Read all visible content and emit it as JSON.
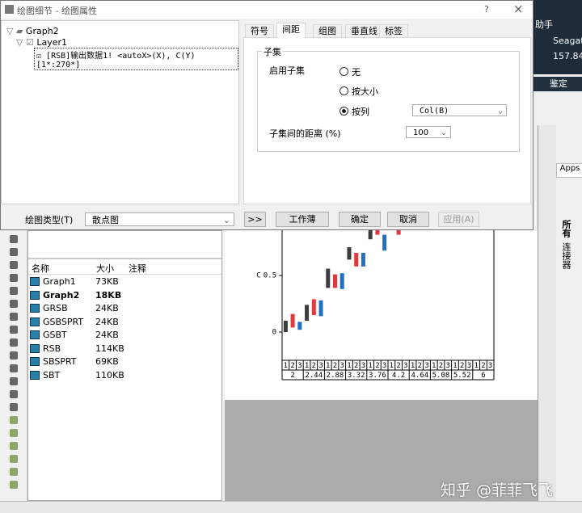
{
  "dialog": {
    "title": "绘图细节 - 绘图属性",
    "help": "?",
    "close": "×",
    "tree": [
      "Graph2",
      "Layer1",
      "[RSB]输出数据1! <autoX>(X), C(Y) [1*:270*]"
    ],
    "tabs": [
      "符号",
      "间距",
      "组图",
      "垂直线",
      "标签"
    ],
    "group_title": "子集",
    "enable_label": "启用子集",
    "options": [
      "无",
      "按大小",
      "按列"
    ],
    "column": "Col(B)",
    "distance_label": "子集间的距离 (%)",
    "distance": "100",
    "plot_type_label": "绘图类型(T)",
    "plot_type": "散点图",
    "buttons": [
      ">>",
      "工作薄",
      "确定",
      "取消",
      "应用(A)"
    ]
  },
  "explorer": {
    "columns": [
      "名称",
      "大小",
      "注释"
    ],
    "rows": [
      [
        "Graph1",
        "73KB"
      ],
      [
        "Graph2",
        "18KB"
      ],
      [
        "GRSB",
        "24KB"
      ],
      [
        "GSBSPRT",
        "24KB"
      ],
      [
        "GSBT",
        "24KB"
      ],
      [
        "RSB",
        "114KB"
      ],
      [
        "SBSPRT",
        "69KB"
      ],
      [
        "SBT",
        "110KB"
      ]
    ]
  },
  "graph": {
    "y_label": "C",
    "ylim": [
      -0.25,
      1
    ],
    "yticks": [
      0,
      0.5
    ],
    "sub_labels": [
      "1",
      "2",
      "3"
    ],
    "categories": [
      2,
      2.44,
      2.88,
      3.32,
      3.76,
      4.2,
      4.64,
      5.08,
      5.52,
      6
    ],
    "series": [
      {
        "color": "#3c3c3c",
        "low": [
          0,
          0.1,
          0.39,
          0.64,
          0.82,
          null,
          null,
          null,
          null,
          null
        ],
        "high": [
          0.1,
          0.24,
          0.56,
          0.75,
          0.9,
          null,
          null,
          null,
          null,
          null
        ]
      },
      {
        "color": "#e0393e",
        "low": [
          0.04,
          0.15,
          0.39,
          0.58,
          0.86,
          0.86,
          null,
          null,
          null,
          null
        ],
        "high": [
          0.16,
          0.29,
          0.51,
          0.7,
          0.94,
          0.97,
          null,
          null,
          null,
          null
        ]
      },
      {
        "color": "#1f6fc5",
        "low": [
          0.02,
          0.14,
          0.38,
          0.58,
          0.72,
          null,
          null,
          null,
          null,
          null
        ],
        "high": [
          0.09,
          0.28,
          0.52,
          0.7,
          0.86,
          null,
          null,
          null,
          null,
          null
        ]
      }
    ]
  },
  "side": {
    "assistant": "助手",
    "drive": "Seagate",
    "size": "157.840",
    "identify": "鉴定",
    "apps": "Apps",
    "tab1": "所有",
    "tab2": "连接器"
  },
  "watermark": "知乎 @菲菲飞飞"
}
